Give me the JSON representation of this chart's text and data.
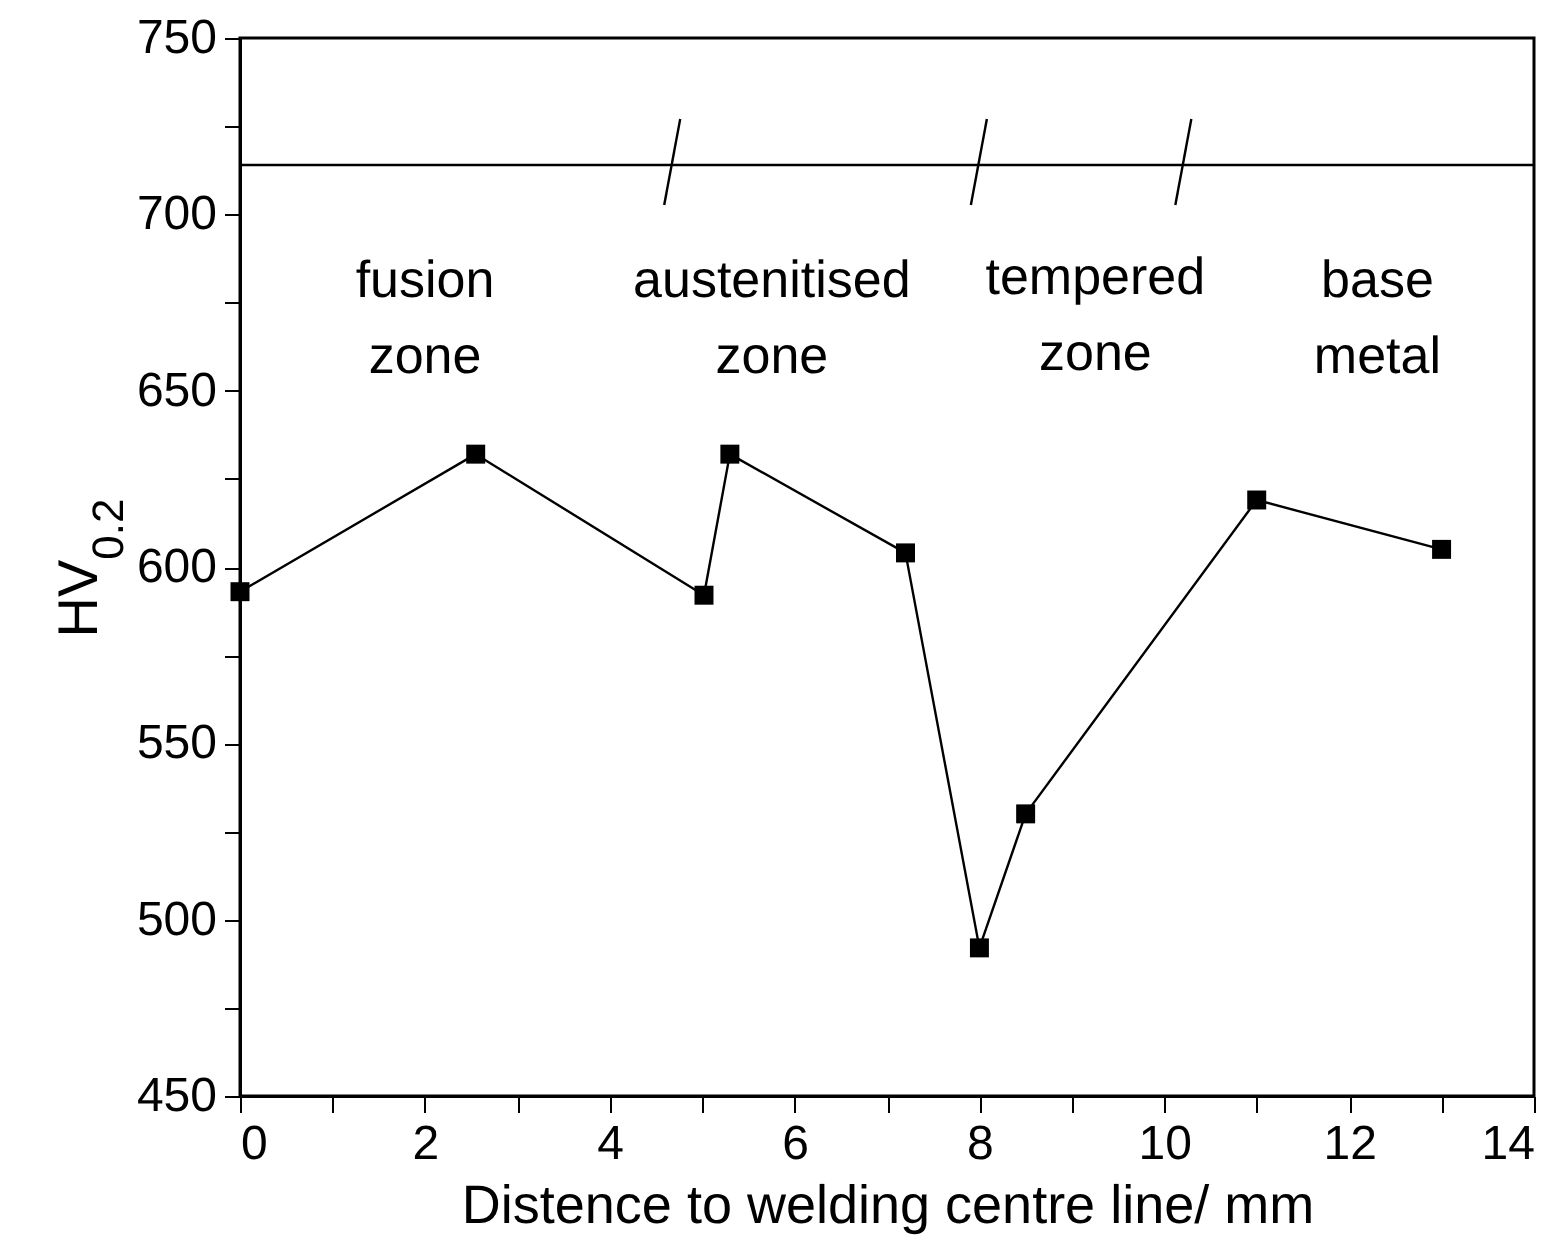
{
  "chart_data": {
    "type": "line",
    "xlabel": "Distence to welding centre line/ mm",
    "ylabel": "HV$_{0.2}$",
    "x": [
      0,
      2.55,
      5.02,
      5.3,
      7.2,
      8.0,
      8.5,
      11.0,
      13.0
    ],
    "series": [
      {
        "color": "#000000",
        "values": [
          593,
          632,
          592,
          632,
          604,
          492,
          530,
          619,
          605
        ]
      }
    ],
    "marker": "square",
    "line_style": "solid",
    "grid": false,
    "xlim": [
      0,
      14
    ],
    "ylim": [
      450,
      750
    ],
    "xticks": [
      0,
      {
        "value": 1,
        "label": null
      },
      2,
      {
        "value": 3,
        "label": null
      },
      4,
      {
        "value": 5,
        "label": null
      },
      6,
      {
        "value": 7,
        "label": null
      },
      8,
      {
        "value": 9,
        "label": null
      },
      10,
      {
        "value": 11,
        "label": null
      },
      12,
      {
        "value": 13,
        "label": null
      },
      14
    ],
    "yticks": [
      450,
      {
        "value": 475,
        "label": null
      },
      500,
      {
        "value": 525,
        "label": null
      },
      550,
      {
        "value": 575,
        "label": null
      },
      600,
      {
        "value": 625,
        "label": null
      },
      650,
      {
        "value": 675,
        "label": null
      },
      700,
      {
        "value": 725,
        "label": null
      },
      750
    ],
    "ref_lines": [
      {
        "axis": "y",
        "value": 714,
        "color": "#000000"
      }
    ],
    "annotations": [
      "fusion zone",
      "austenitised zone",
      "tempered zone",
      "base metal"
    ]
  }
}
